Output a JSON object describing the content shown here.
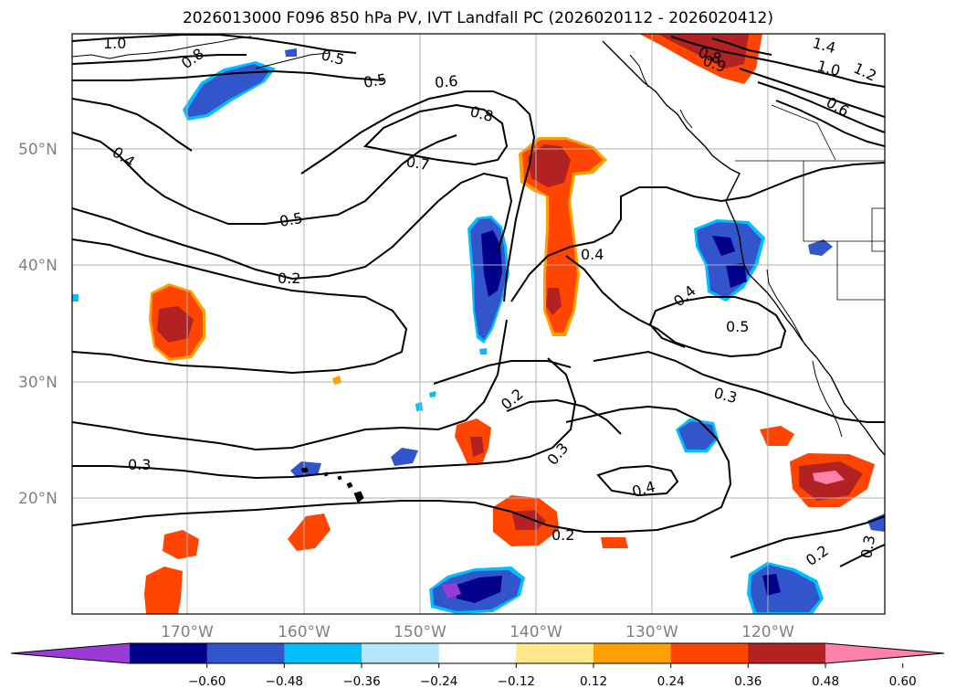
{
  "title": "2026013000 F096 850 hPa PV, IVT Landfall PC (2026020112 - 2026020412)",
  "lat_labels": [
    "50°N",
    "40°N",
    "30°N",
    "20°N"
  ],
  "lon_labels": [
    "170°W",
    "160°W",
    "150°W",
    "140°W",
    "130°W",
    "120°W"
  ],
  "contour_labels": [
    "1.0",
    "0.8",
    "0.5",
    "0.6",
    "0.8",
    "0.7",
    "0.5",
    "0.2",
    "0.4",
    "0.4",
    "0.4",
    "0.5",
    "0.3",
    "0.2",
    "0.3",
    "0.4",
    "0.2",
    "0.3",
    "0.2",
    "0.3",
    "1.4",
    "1.0",
    "1.2",
    "0.6",
    "0.8",
    "0.9",
    "0.5"
  ],
  "colorbar": {
    "ticks": [
      "−0.60",
      "−0.48",
      "−0.36",
      "−0.24",
      "−0.12",
      "0.12",
      "0.24",
      "0.36",
      "0.48",
      "0.60"
    ],
    "colors": [
      "#9a3bd6",
      "#00008b",
      "#3355cc",
      "#00bfff",
      "#b3e5fc",
      "#ffffff",
      "#ffe88c",
      "#ffa000",
      "#ff4500",
      "#b22222",
      "#ff82ab"
    ]
  }
}
